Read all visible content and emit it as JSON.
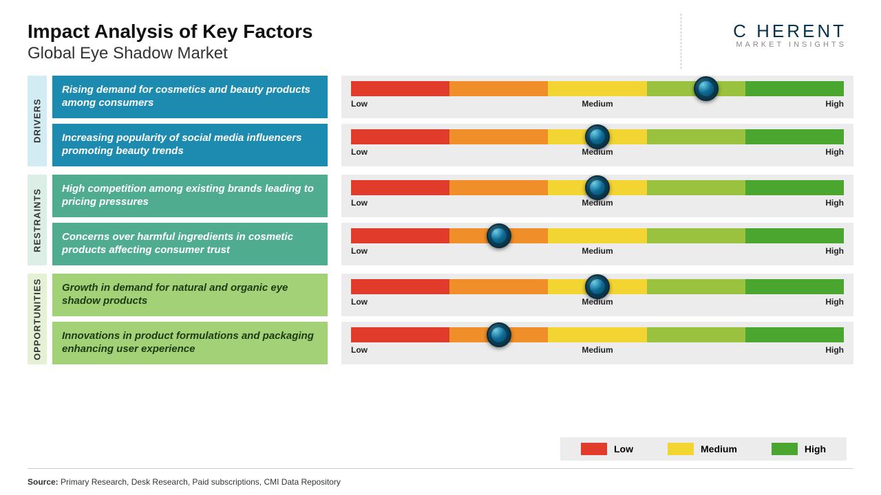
{
  "title": "Impact Analysis of Key Factors",
  "subtitle": "Global Eye Shadow Market",
  "logo": {
    "main": "C   HERENT",
    "sub": "MARKET INSIGHTS"
  },
  "scale_labels": {
    "low": "Low",
    "medium": "Medium",
    "high": "High"
  },
  "gauge": {
    "segment_colors": [
      "#e13b2b",
      "#f08f2a",
      "#f2d433",
      "#9ac23f",
      "#4aa62f"
    ],
    "knob_diameter": 36,
    "background": "#ececec"
  },
  "groups": [
    {
      "label": "DRIVERS",
      "label_bg": "#d3ecf4",
      "box_bg": "#1d8bb0",
      "rows": [
        {
          "text": "Rising demand for cosmetics and beauty products among consumers",
          "value_pct": 72
        },
        {
          "text": "Increasing popularity of social media influencers promoting beauty trends",
          "value_pct": 50
        }
      ]
    },
    {
      "label": "RESTRAINTS",
      "label_bg": "#dcefe7",
      "box_bg": "#4fac8e",
      "rows": [
        {
          "text": "High competition among existing brands leading to pricing pressures",
          "value_pct": 50
        },
        {
          "text": "Concerns over harmful ingredients in cosmetic products affecting consumer trust",
          "value_pct": 30
        }
      ]
    },
    {
      "label": "OPPORTUNITIES",
      "label_bg": "#e4f1d5",
      "box_bg": "#a3d178",
      "rows": [
        {
          "text": "Growth in demand for natural and organic eye shadow products",
          "value_pct": 50
        },
        {
          "text": "Innovations in product formulations and packaging enhancing user experience",
          "value_pct": 30
        }
      ]
    }
  ],
  "legend": [
    {
      "label": "Low",
      "color": "#e13b2b"
    },
    {
      "label": "Medium",
      "color": "#f2d433"
    },
    {
      "label": "High",
      "color": "#4aa62f"
    }
  ],
  "source": {
    "label": "Source:",
    "text": "Primary Research, Desk Research, Paid subscriptions, CMI Data Repository"
  }
}
